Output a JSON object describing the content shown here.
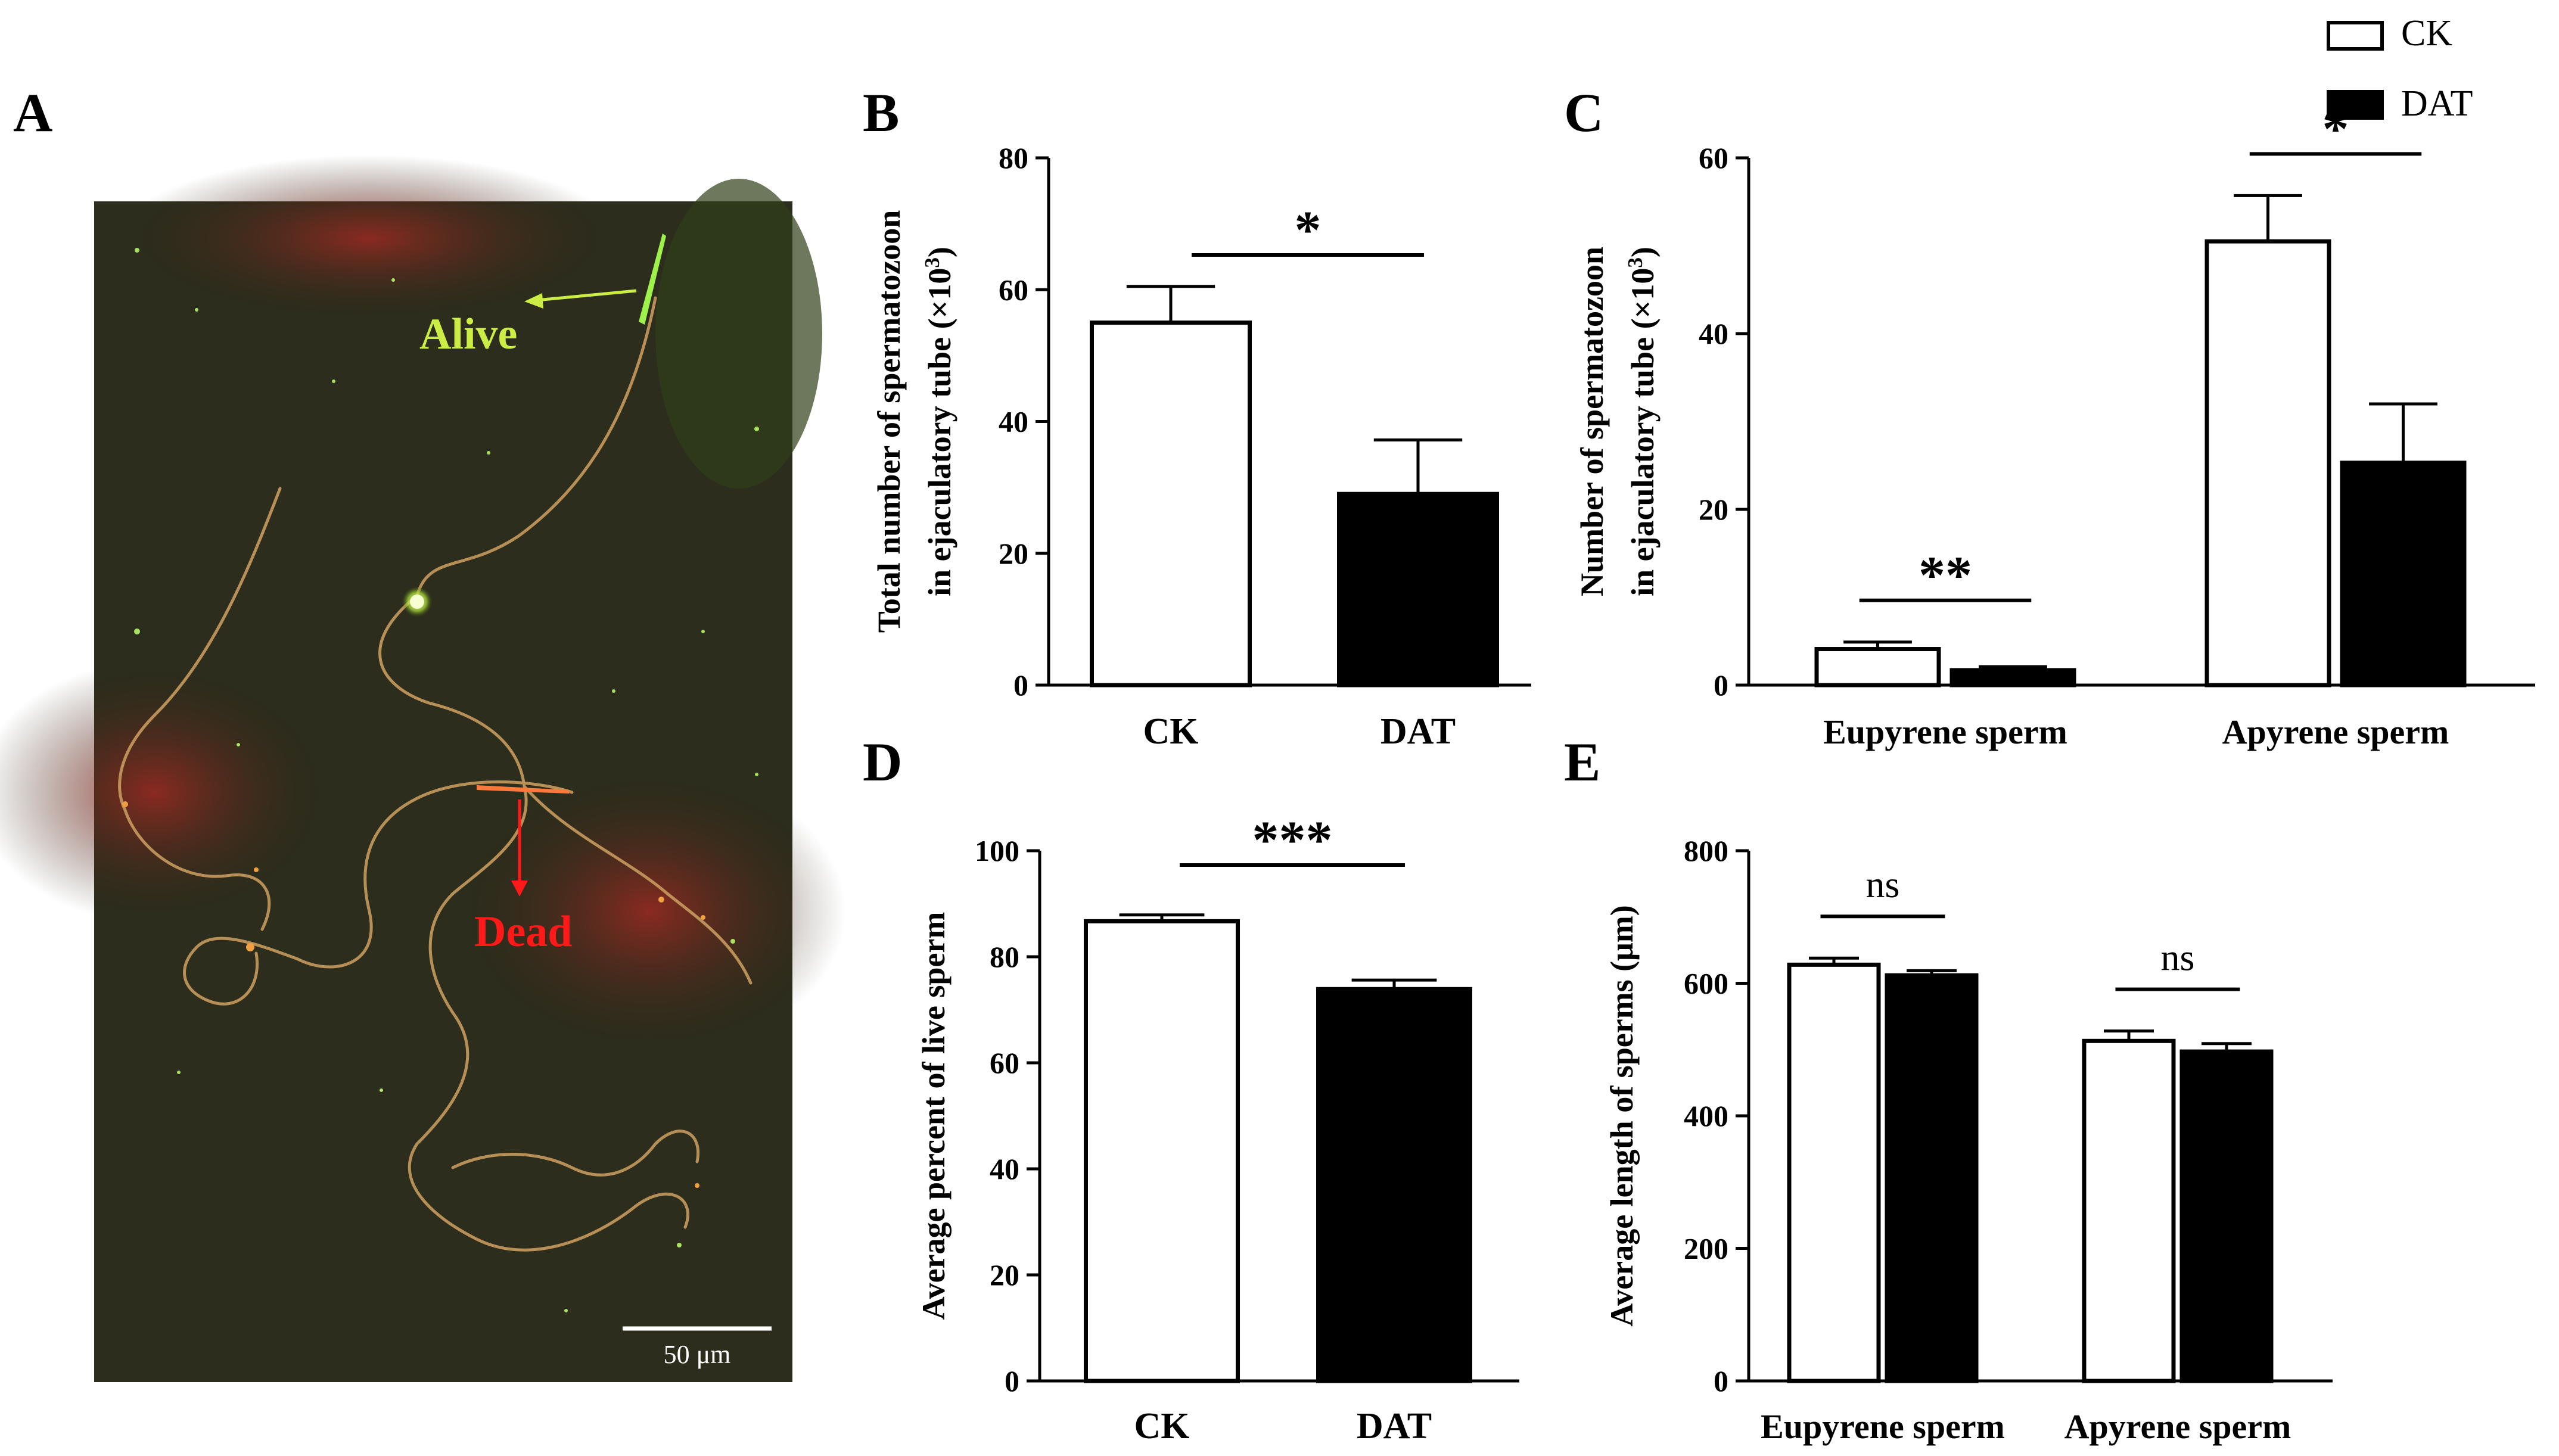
{
  "figure": {
    "legend": [
      {
        "label": "CK",
        "color": "#ffffff"
      },
      {
        "label": "DAT",
        "color": "#000000"
      }
    ],
    "panel_a": {
      "letter": "A",
      "alive_label": "Alive",
      "alive_color": "#ccee44",
      "dead_label": "Dead",
      "dead_color": "#ff1a1a",
      "scalebar_label": "50 μm"
    }
  },
  "chart_data": [
    {
      "panel": "B",
      "type": "bar",
      "ylabel_line1": "Total number of spermatozoon",
      "ylabel_line2": "in ejaculatory tube (×10",
      "ylabel_sup": "3",
      "ylabel_close": ")",
      "ylim": [
        0,
        80
      ],
      "yticks": [
        0,
        20,
        40,
        60,
        80
      ],
      "categories": [
        "CK",
        "DAT"
      ],
      "series": [
        {
          "values": [
            55,
            29
          ],
          "errors": [
            5.5,
            8.2
          ]
        }
      ],
      "colors": [
        "#ffffff",
        "#000000"
      ],
      "significance": [
        {
          "label": "*",
          "from": 0,
          "to": 1
        }
      ]
    },
    {
      "panel": "C",
      "type": "bar",
      "ylabel_line1": "Number of spermatozoon",
      "ylabel_line2": "in ejaculatory tube (×10",
      "ylabel_sup": "3",
      "ylabel_close": ")",
      "ylim": [
        0,
        60
      ],
      "yticks": [
        0,
        20,
        40,
        60
      ],
      "categories": [
        "Eupyrene sperm",
        "Apyrene sperm"
      ],
      "series": [
        {
          "name": "CK",
          "values": [
            4.1,
            50.5
          ],
          "errors": [
            0.8,
            5.2
          ]
        },
        {
          "name": "DAT",
          "values": [
            1.7,
            25.3
          ],
          "errors": [
            0.4,
            6.7
          ]
        }
      ],
      "colors": [
        "#ffffff",
        "#000000"
      ],
      "significance": [
        {
          "label": "**",
          "category": 0
        },
        {
          "label": "*",
          "category": 1
        }
      ]
    },
    {
      "panel": "D",
      "type": "bar",
      "ylabel_line1": "Average percent of live sperm",
      "ylim": [
        0,
        100
      ],
      "yticks": [
        0,
        20,
        40,
        60,
        80,
        100
      ],
      "categories": [
        "CK",
        "DAT"
      ],
      "series": [
        {
          "values": [
            86.7,
            73.9
          ],
          "errors": [
            1.2,
            1.7
          ]
        }
      ],
      "colors": [
        "#ffffff",
        "#000000"
      ],
      "significance": [
        {
          "label": "***",
          "from": 0,
          "to": 1
        }
      ]
    },
    {
      "panel": "E",
      "type": "bar",
      "ylabel_line1": "Average length of sperms (μm)",
      "ylim": [
        0,
        800
      ],
      "yticks": [
        0,
        200,
        400,
        600,
        800
      ],
      "categories": [
        "Eupyrene sperm",
        "Apyrene sperm"
      ],
      "series": [
        {
          "name": "CK",
          "values": [
            628,
            513
          ],
          "errors": [
            10,
            15
          ]
        },
        {
          "name": "DAT",
          "values": [
            612,
            497
          ],
          "errors": [
            7,
            12
          ]
        }
      ],
      "colors": [
        "#ffffff",
        "#000000"
      ],
      "significance": [
        {
          "label": "ns",
          "category": 0
        },
        {
          "label": "ns",
          "category": 1
        }
      ]
    }
  ]
}
